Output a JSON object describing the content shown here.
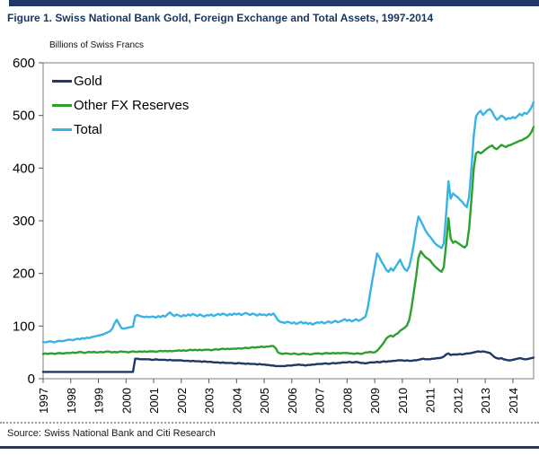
{
  "source": {
    "text": "Source: Swiss National Bank and Citi Research"
  },
  "colors": {
    "accent_navy": "#1F3864",
    "green": "#2CA02C",
    "cyan": "#38B3E3",
    "title_navy": "#17365D",
    "axis_gray": "#595959",
    "border_gray": "#7f7f7f"
  },
  "chart_data": {
    "type": "line",
    "title": "Figure 1. Swiss National Bank Gold, Foreign Exchange and Total Assets, 1997-2014",
    "ylabel": "Billions of Swiss Francs",
    "xlabel": "",
    "grid": false,
    "legend_position": "top-left",
    "ylim": [
      0,
      600
    ],
    "y_ticks": [
      0,
      100,
      200,
      300,
      400,
      500,
      600
    ],
    "x_ticks": [
      1997,
      1998,
      1999,
      2000,
      2001,
      2002,
      2003,
      2004,
      2005,
      2006,
      2007,
      2008,
      2009,
      2010,
      2011,
      2012,
      2013,
      2014
    ],
    "x_start": 1997.0,
    "x_step": 0.0833333,
    "series": [
      {
        "name": "Gold",
        "color": "#1F3864",
        "values": [
          13,
          13,
          13,
          13,
          13,
          13,
          13,
          13,
          13,
          13,
          13,
          13,
          13,
          13,
          13,
          13,
          13,
          13,
          13,
          13,
          13,
          13,
          13,
          13,
          13,
          13,
          13,
          13,
          13,
          13,
          13,
          13,
          13,
          13,
          13,
          13,
          13,
          13,
          13,
          13,
          38,
          38,
          37,
          37,
          37,
          37,
          37,
          36,
          36,
          37,
          36,
          36,
          36,
          36,
          35,
          36,
          35,
          35,
          35,
          35,
          35,
          34,
          34,
          34,
          33,
          34,
          33,
          33,
          33,
          32,
          33,
          32,
          32,
          32,
          31,
          31,
          31,
          30,
          31,
          30,
          30,
          30,
          30,
          29,
          29,
          30,
          29,
          29,
          28,
          29,
          28,
          28,
          28,
          27,
          28,
          27,
          27,
          26,
          26,
          25,
          25,
          24,
          24,
          24,
          24,
          24,
          25,
          25,
          25,
          26,
          26,
          27,
          26,
          26,
          25,
          26,
          26,
          27,
          27,
          28,
          28,
          28,
          29,
          29,
          28,
          29,
          30,
          29,
          30,
          30,
          31,
          31,
          31,
          32,
          31,
          31,
          32,
          31,
          30,
          30,
          29,
          30,
          31,
          31,
          31,
          32,
          31,
          32,
          33,
          32,
          33,
          33,
          34,
          34,
          35,
          35,
          35,
          34,
          35,
          34,
          34,
          35,
          35,
          36,
          37,
          38,
          37,
          37,
          37,
          38,
          38,
          39,
          39,
          40,
          42,
          46,
          48,
          45,
          46,
          46,
          46,
          47,
          46,
          47,
          48,
          48,
          49,
          50,
          51,
          52,
          51,
          52,
          51,
          50,
          49,
          45,
          41,
          39,
          38,
          39,
          37,
          36,
          35,
          35,
          36,
          37,
          38,
          39,
          38,
          37,
          37,
          38,
          39,
          40
        ]
      },
      {
        "name": "Other FX Reserves",
        "color": "#2CA02C",
        "values": [
          47,
          48,
          47,
          48,
          48,
          47,
          48,
          49,
          48,
          48,
          49,
          49,
          49,
          50,
          49,
          50,
          51,
          50,
          49,
          50,
          51,
          50,
          51,
          50,
          50,
          51,
          50,
          51,
          52,
          51,
          50,
          51,
          50,
          51,
          52,
          51,
          51,
          50,
          51,
          52,
          51,
          51,
          52,
          51,
          52,
          51,
          52,
          52,
          52,
          51,
          52,
          53,
          52,
          53,
          52,
          53,
          52,
          53,
          53,
          54,
          53,
          54,
          53,
          54,
          55,
          54,
          55,
          54,
          55,
          54,
          55,
          55,
          55,
          54,
          55,
          56,
          55,
          56,
          57,
          56,
          57,
          56,
          57,
          57,
          57,
          58,
          57,
          58,
          59,
          58,
          59,
          60,
          59,
          60,
          60,
          61,
          60,
          61,
          61,
          62,
          62,
          58,
          50,
          48,
          47,
          48,
          48,
          47,
          47,
          48,
          47,
          46,
          47,
          48,
          47,
          47,
          46,
          47,
          48,
          48,
          48,
          47,
          48,
          49,
          48,
          48,
          49,
          48,
          49,
          48,
          49,
          49,
          49,
          48,
          48,
          47,
          48,
          48,
          47,
          48,
          50,
          50,
          51,
          50,
          50,
          53,
          58,
          63,
          69,
          76,
          80,
          82,
          80,
          84,
          86,
          91,
          94,
          97,
          101,
          112,
          135,
          165,
          195,
          230,
          242,
          236,
          231,
          228,
          225,
          219,
          214,
          210,
          206,
          203,
          212,
          255,
          305,
          266,
          258,
          261,
          258,
          255,
          252,
          249,
          254,
          285,
          340,
          400,
          428,
          431,
          428,
          431,
          435,
          438,
          441,
          443,
          438,
          436,
          440,
          444,
          442,
          440,
          443,
          444,
          446,
          448,
          450,
          452,
          453,
          456,
          458,
          462,
          468,
          478
        ]
      },
      {
        "name": "Total",
        "color": "#38B3E3",
        "values": [
          70,
          69,
          70,
          71,
          70,
          69,
          71,
          72,
          71,
          72,
          73,
          74,
          74,
          73,
          75,
          76,
          75,
          77,
          76,
          78,
          77,
          79,
          80,
          81,
          82,
          83,
          84,
          86,
          88,
          90,
          95,
          105,
          112,
          104,
          96,
          95,
          96,
          97,
          98,
          99,
          119,
          121,
          119,
          118,
          117,
          118,
          117,
          118,
          118,
          116,
          119,
          117,
          120,
          118,
          122,
          126,
          122,
          119,
          122,
          120,
          118,
          121,
          119,
          122,
          120,
          123,
          121,
          119,
          122,
          120,
          118,
          121,
          120,
          122,
          119,
          121,
          123,
          121,
          124,
          122,
          120,
          123,
          121,
          124,
          122,
          124,
          121,
          123,
          125,
          123,
          121,
          124,
          122,
          120,
          123,
          121,
          122,
          120,
          123,
          121,
          124,
          118,
          111,
          108,
          107,
          106,
          108,
          107,
          105,
          107,
          104,
          106,
          108,
          105,
          107,
          104,
          106,
          103,
          105,
          107,
          106,
          108,
          105,
          107,
          109,
          106,
          108,
          110,
          107,
          109,
          111,
          113,
          110,
          112,
          109,
          111,
          113,
          110,
          112,
          115,
          118,
          135,
          162,
          188,
          212,
          238,
          231,
          222,
          215,
          207,
          203,
          210,
          205,
          212,
          219,
          226,
          216,
          208,
          205,
          213,
          232,
          256,
          286,
          308,
          300,
          291,
          282,
          275,
          270,
          264,
          258,
          254,
          251,
          248,
          257,
          312,
          375,
          342,
          352,
          348,
          345,
          340,
          336,
          330,
          326,
          346,
          400,
          462,
          498,
          505,
          509,
          501,
          505,
          510,
          512,
          507,
          498,
          492,
          495,
          500,
          497,
          492,
          495,
          494,
          497,
          495,
          499,
          503,
          500,
          505,
          503,
          508,
          515,
          525
        ]
      }
    ]
  }
}
